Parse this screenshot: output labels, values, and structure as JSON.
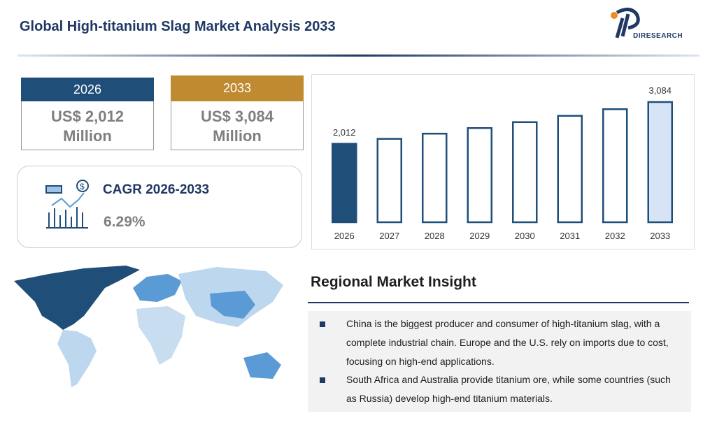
{
  "header": {
    "title": "Global High-titanium Slag Market Analysis 2033",
    "logo": "DIRESEARCH"
  },
  "cards": [
    {
      "year": "2026",
      "value": "US$ 2,012",
      "unit": "Million"
    },
    {
      "year": "2033",
      "value": "US$ 3,084",
      "unit": "Million"
    }
  ],
  "cagr": {
    "label": "CAGR 2026-2033",
    "value": "6.29%"
  },
  "chart_data": {
    "type": "bar",
    "categories": [
      "2026",
      "2027",
      "2028",
      "2029",
      "2030",
      "2031",
      "2032",
      "2033"
    ],
    "values": [
      2012,
      2139,
      2273,
      2416,
      2568,
      2730,
      2901,
      3084
    ],
    "value_labels": [
      "2,012",
      null,
      null,
      null,
      null,
      null,
      null,
      "3,084"
    ],
    "colors": [
      "#1f4e79",
      "#ffffff",
      "#ffffff",
      "#ffffff",
      "#ffffff",
      "#ffffff",
      "#ffffff",
      "#d6e4f5"
    ],
    "color": "#1f4e79"
  },
  "insight": {
    "title": "Regional Market Insight",
    "bullets": [
      "China is the biggest producer and consumer of high-titanium slag, with a complete industrial chain. Europe and the U.S. rely on imports due to cost, focusing on high-end applications.",
      "South Africa and Australia provide titanium ore, while some countries (such as Russia) develop high-end titanium materials."
    ]
  }
}
